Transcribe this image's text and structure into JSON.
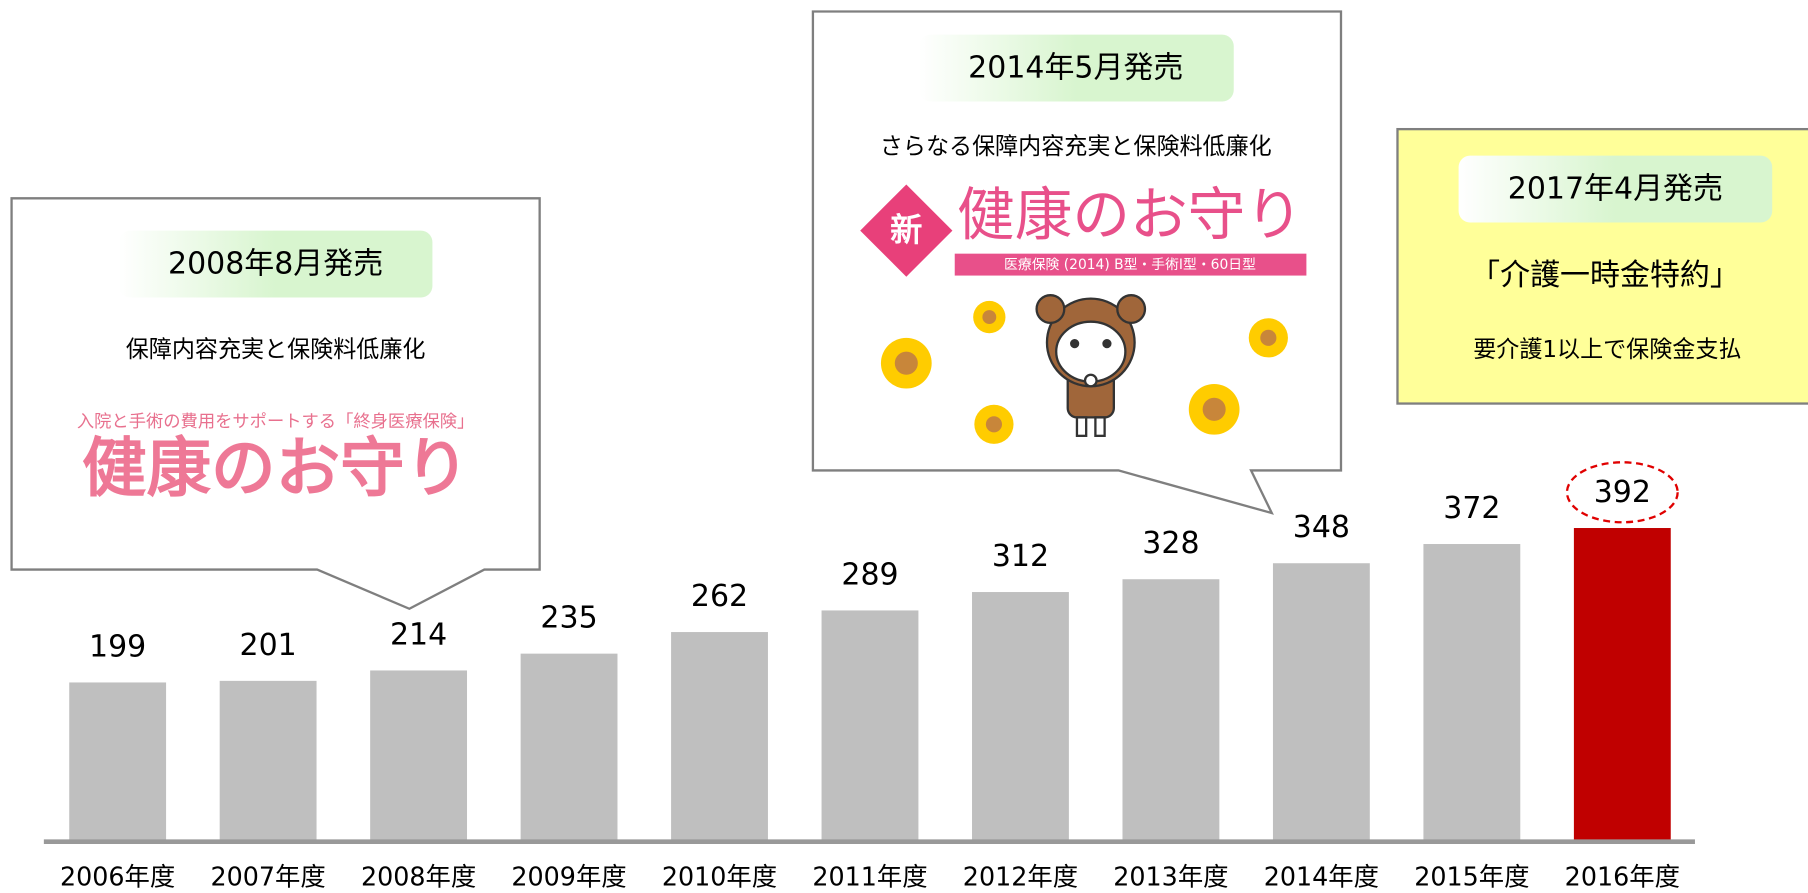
{
  "chart_data": {
    "type": "bar",
    "categories": [
      "2006年度",
      "2007年度",
      "2008年度",
      "2009年度",
      "2010年度",
      "2011年度",
      "2012年度",
      "2013年度",
      "2014年度",
      "2015年度",
      "2016年度"
    ],
    "values": [
      199,
      201,
      214,
      235,
      262,
      289,
      312,
      328,
      348,
      372,
      392
    ],
    "colors": [
      "#bfbfbf",
      "#bfbfbf",
      "#bfbfbf",
      "#bfbfbf",
      "#bfbfbf",
      "#bfbfbf",
      "#bfbfbf",
      "#bfbfbf",
      "#bfbfbf",
      "#bfbfbf",
      "#c00000"
    ]
  },
  "annotations": [
    {
      "date": "2008年8月発売",
      "text": "保障内容充実と保険料低廉化",
      "logo_sub": "入院と手術の費用をサポートする「終身医療保険」",
      "logo": "健康のお守り"
    },
    {
      "date": "2014年5月発売",
      "text": "さらなる保障内容充実と保険料低廉化",
      "logo_badge": "新",
      "logo": "健康のお守り",
      "logo_sub": "医療保険 (2014) B型・手術Ⅰ型・60日型"
    },
    {
      "date": "2017年4月発売",
      "text": "「介護一時金特約」",
      "note": "要介護1以上で保険金支払"
    }
  ]
}
